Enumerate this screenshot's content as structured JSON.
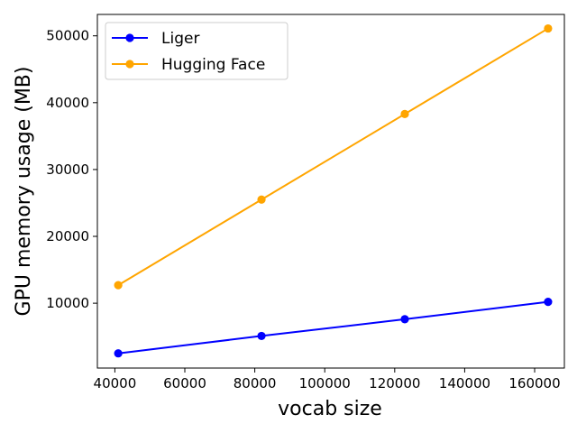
{
  "chart_data": {
    "type": "line",
    "xlabel": "vocab size",
    "ylabel": "GPU memory usage (MB)",
    "xlim": [
      35000,
      168500
    ],
    "ylim": [
      300,
      53200
    ],
    "x_ticks": [
      40000,
      60000,
      80000,
      100000,
      120000,
      140000,
      160000
    ],
    "y_ticks": [
      10000,
      20000,
      30000,
      40000,
      50000
    ],
    "grid": false,
    "legend_position": "top-left",
    "x": [
      40960,
      81920,
      122880,
      163840
    ],
    "series": [
      {
        "name": "Liger",
        "color": "#0000ff",
        "marker": "circle",
        "values": [
          2500,
          5100,
          7600,
          10200
        ]
      },
      {
        "name": "Hugging Face",
        "color": "#ffa500",
        "marker": "circle",
        "values": [
          12700,
          25500,
          38300,
          51100
        ]
      }
    ]
  }
}
